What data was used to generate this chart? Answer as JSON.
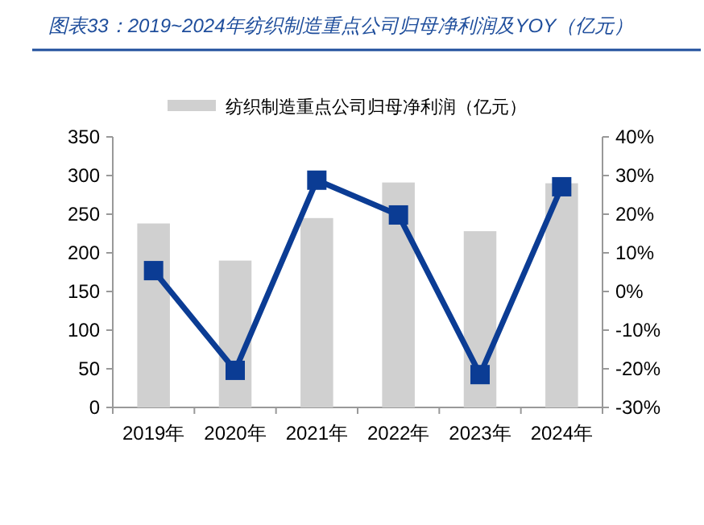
{
  "chart_data": {
    "type": "bar",
    "title": "图表33：2019~2024年纺织制造重点公司归母净利润及YOY（亿元）",
    "categories": [
      "2019年",
      "2020年",
      "2021年",
      "2022年",
      "2023年",
      "2024年"
    ],
    "series": [
      {
        "name": "纺织制造重点公司归母净利润（亿元）",
        "color": "#d0d0d0",
        "values": [
          238,
          190,
          245,
          291,
          228,
          290
        ]
      },
      {
        "type": "line",
        "axis": "y2",
        "color": "#0b3c94",
        "marker": "square",
        "values": [
          5.4,
          -20.4,
          28.8,
          19.8,
          -21.5,
          27.1
        ]
      }
    ],
    "ylim": [
      0,
      350
    ],
    "yticks": [
      0,
      50,
      100,
      150,
      200,
      250,
      300,
      350
    ],
    "y2lim": [
      -30,
      40
    ],
    "y2ticks": [
      {
        "value": -30,
        "label": "-30%"
      },
      {
        "value": -20,
        "label": "-20%"
      },
      {
        "value": -10,
        "label": "-10%"
      },
      {
        "value": 0,
        "label": "0%"
      },
      {
        "value": 10,
        "label": "10%"
      },
      {
        "value": 20,
        "label": "20%"
      },
      {
        "value": 30,
        "label": "30%"
      },
      {
        "value": 40,
        "label": "40%"
      }
    ],
    "grid": false,
    "legend": "top"
  }
}
